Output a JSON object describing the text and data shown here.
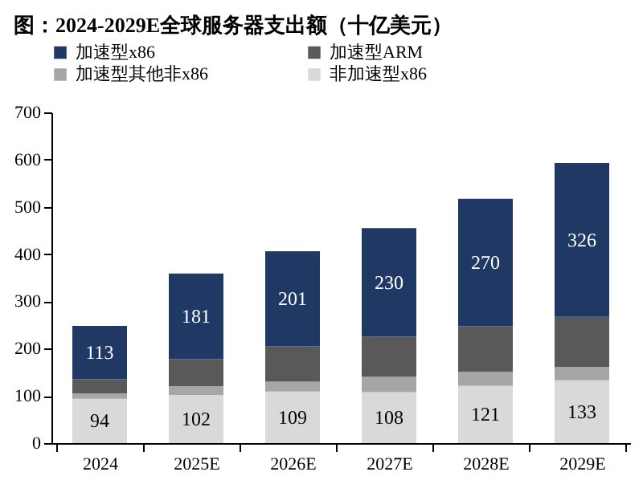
{
  "chart_data": {
    "type": "bar",
    "title": "图：2024-2029E全球服务器支出额（十亿美元）",
    "stacked": true,
    "categories": [
      "2024",
      "2025E",
      "2026E",
      "2027E",
      "2028E",
      "2029E"
    ],
    "series": [
      {
        "name": "非加速型x86",
        "color": "#d9d9d9",
        "values": [
          94,
          102,
          109,
          108,
          121,
          133
        ],
        "value_labels": [
          "94",
          "102",
          "109",
          "108",
          "121",
          "133"
        ]
      },
      {
        "name": "加速型其他非x86",
        "color": "#a6a6a6",
        "values": [
          11,
          18,
          21,
          32,
          30,
          28
        ]
      },
      {
        "name": "加速型ARM",
        "color": "#595959",
        "values": [
          30,
          58,
          75,
          85,
          96,
          106
        ]
      },
      {
        "name": "加速型x86",
        "color": "#1f3864",
        "values": [
          113,
          181,
          201,
          230,
          270,
          326
        ],
        "value_labels": [
          "113",
          "181",
          "201",
          "230",
          "270",
          "326"
        ]
      }
    ],
    "ylim": [
      0,
      700
    ],
    "yticks": [
      0,
      100,
      200,
      300,
      400,
      500,
      600,
      700
    ],
    "grid": false,
    "legend": "top"
  }
}
